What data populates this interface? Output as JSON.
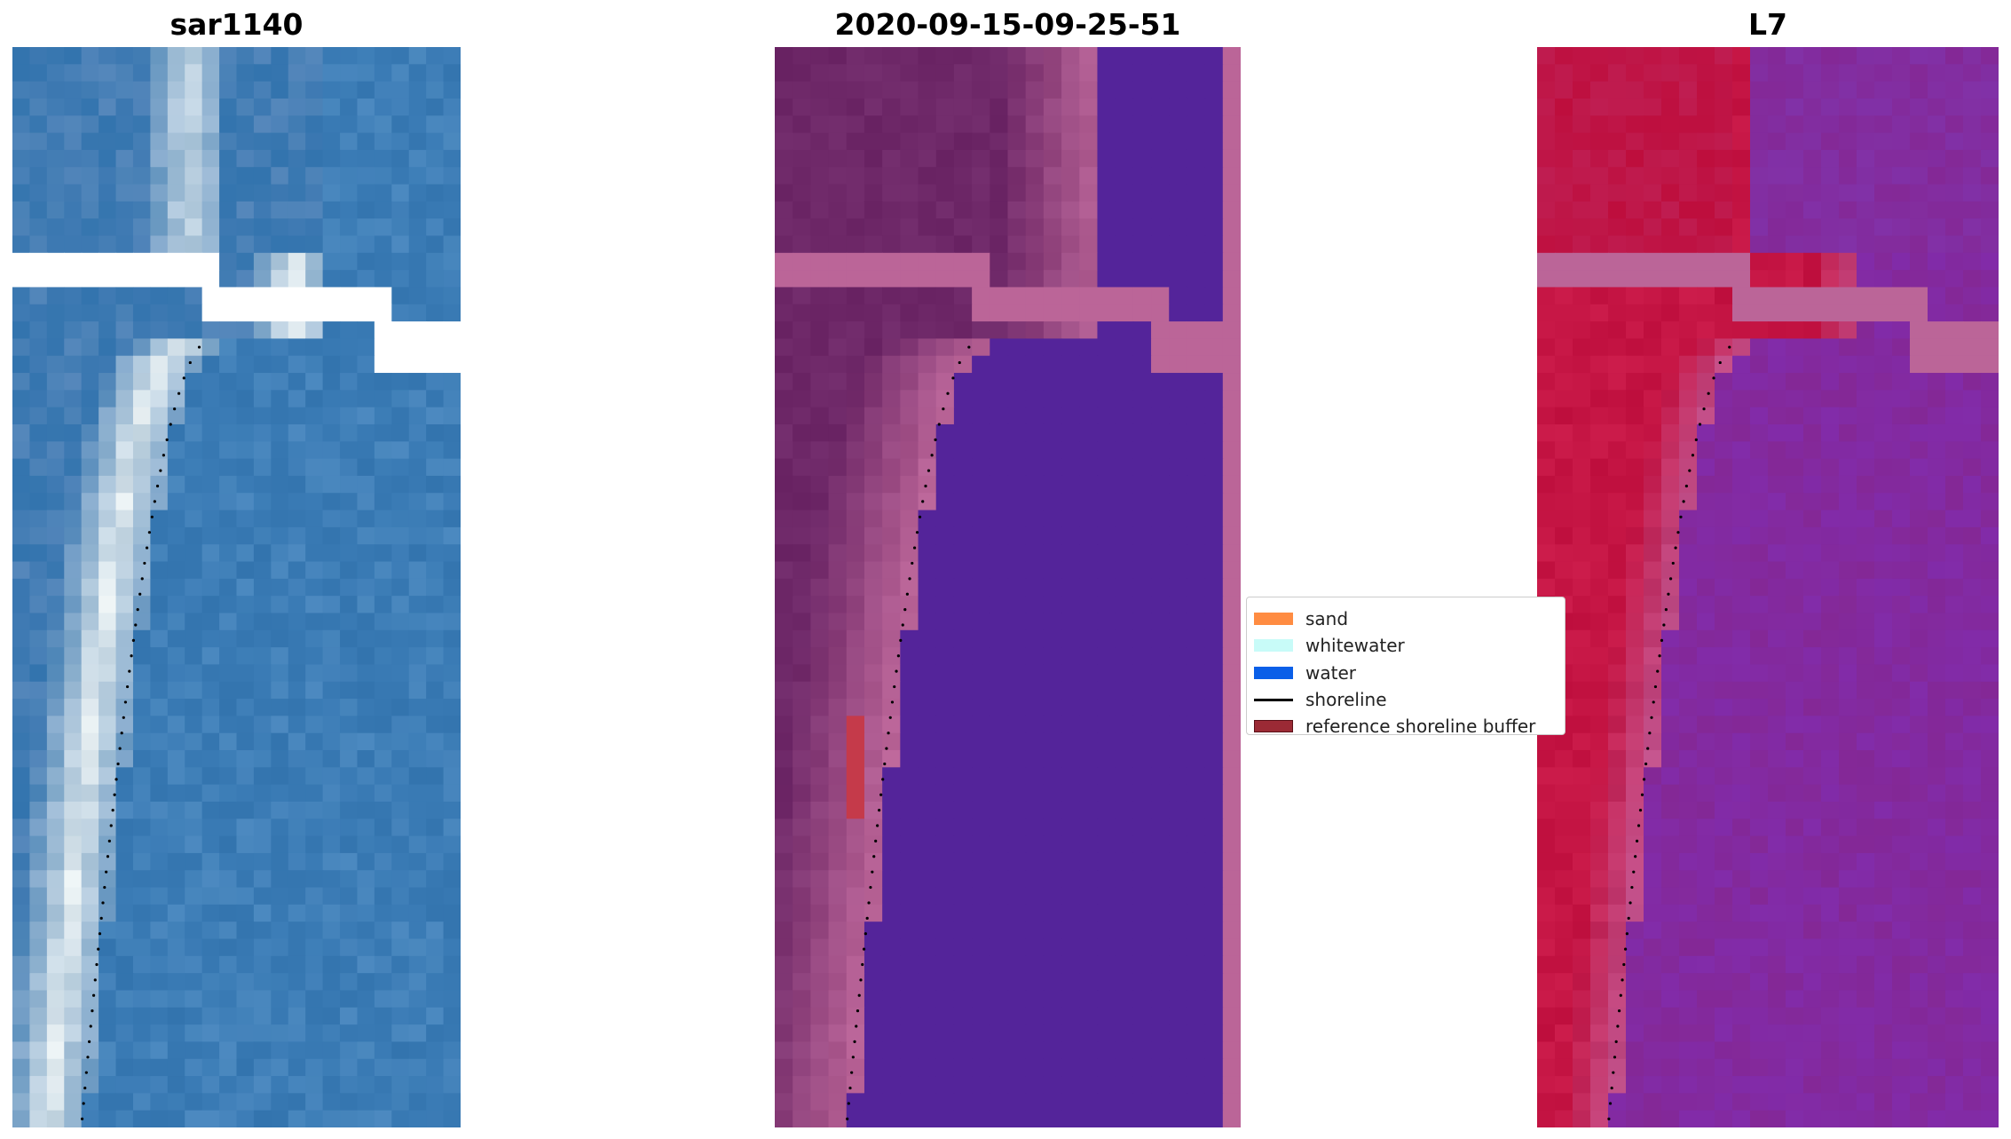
{
  "panels": {
    "left": {
      "title": "sar1140"
    },
    "middle": {
      "title": "2020-09-15-09-25-51"
    },
    "right": {
      "title": "L7"
    }
  },
  "legend": {
    "items": [
      {
        "label": "sand",
        "color": "#ff8c42",
        "kind": "patch"
      },
      {
        "label": "whitewater",
        "color": "#c8fbf8",
        "kind": "patch"
      },
      {
        "label": "water",
        "color": "#0a5fe8",
        "kind": "patch"
      },
      {
        "label": "shoreline",
        "color": "#000000",
        "kind": "line"
      },
      {
        "label": "reference shoreline buffer",
        "color": "#9b2a35",
        "kind": "patch"
      }
    ]
  },
  "colors": {
    "rgb_water": "#3a7bb5",
    "rgb_sand_bright": "#f2f6f4",
    "class_water": "#54249a",
    "class_land_pink": "#bb6598",
    "class_land_dark": "#6e2868",
    "ref_buffer_red": "#c53a4a",
    "swir_red": "#c51544",
    "swir_purple": "#8b2f9d"
  }
}
